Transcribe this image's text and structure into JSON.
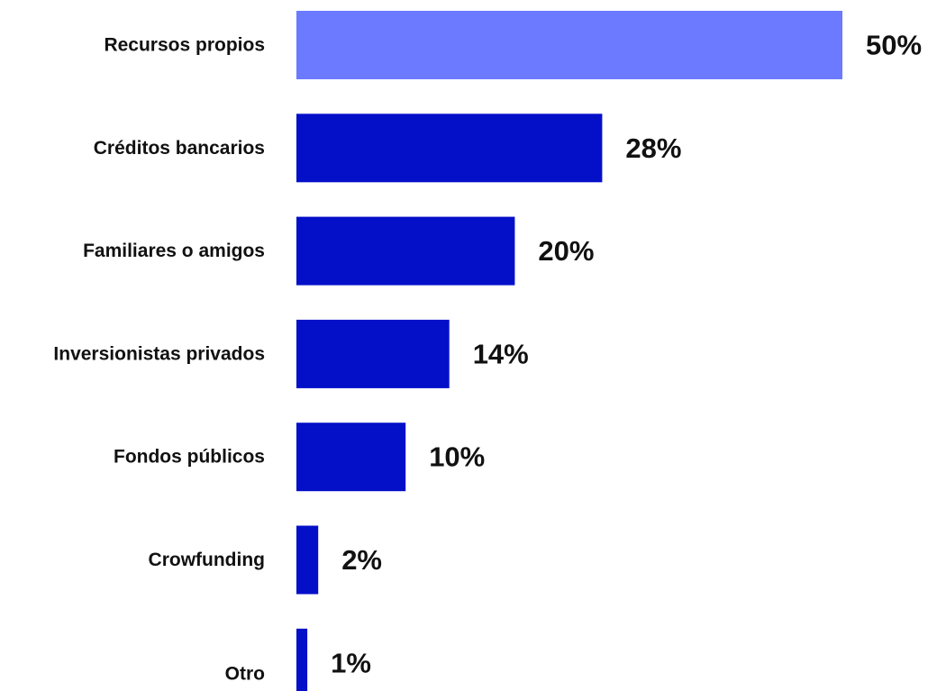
{
  "chart_data": {
    "type": "bar",
    "orientation": "horizontal",
    "categories": [
      "Recursos propios",
      "Créditos bancarios",
      "Familiares o amigos",
      "Inversionistas privados",
      "Fondos públicos",
      "Crowfunding",
      "Otro"
    ],
    "values": [
      50,
      28,
      20,
      14,
      10,
      2,
      1
    ],
    "value_labels": [
      "50%",
      "28%",
      "20%",
      "14%",
      "10%",
      "2%",
      "1%"
    ],
    "unit": "%",
    "xlim": [
      0,
      50
    ],
    "grid": false,
    "legend": "none",
    "colors": {
      "highlight": "#6b7aff",
      "default": "#0410c8"
    },
    "highlight_index": 0
  }
}
